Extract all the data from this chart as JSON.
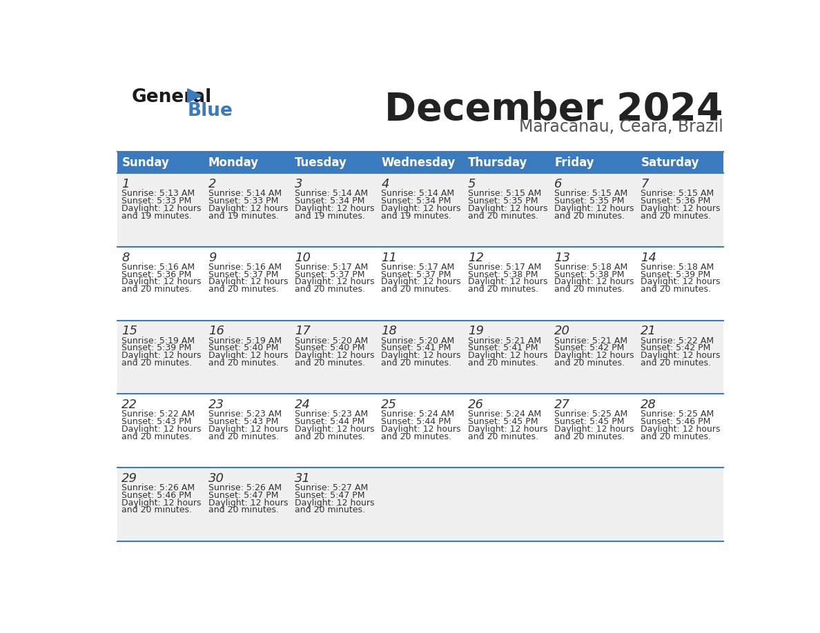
{
  "title": "December 2024",
  "subtitle": "Maracanau, Ceara, Brazil",
  "header_bg_color": "#3a7bbf",
  "header_text_color": "#ffffff",
  "row_bg_odd": "#f0f0f0",
  "row_bg_even": "#ffffff",
  "border_color": "#3a7bbf",
  "days_of_week": [
    "Sunday",
    "Monday",
    "Tuesday",
    "Wednesday",
    "Thursday",
    "Friday",
    "Saturday"
  ],
  "weeks": [
    [
      {
        "day": 1,
        "sunrise": "5:13 AM",
        "sunset": "5:33 PM",
        "dl1": "Daylight: 12 hours",
        "dl2": "and 19 minutes."
      },
      {
        "day": 2,
        "sunrise": "5:14 AM",
        "sunset": "5:33 PM",
        "dl1": "Daylight: 12 hours",
        "dl2": "and 19 minutes."
      },
      {
        "day": 3,
        "sunrise": "5:14 AM",
        "sunset": "5:34 PM",
        "dl1": "Daylight: 12 hours",
        "dl2": "and 19 minutes."
      },
      {
        "day": 4,
        "sunrise": "5:14 AM",
        "sunset": "5:34 PM",
        "dl1": "Daylight: 12 hours",
        "dl2": "and 19 minutes."
      },
      {
        "day": 5,
        "sunrise": "5:15 AM",
        "sunset": "5:35 PM",
        "dl1": "Daylight: 12 hours",
        "dl2": "and 20 minutes."
      },
      {
        "day": 6,
        "sunrise": "5:15 AM",
        "sunset": "5:35 PM",
        "dl1": "Daylight: 12 hours",
        "dl2": "and 20 minutes."
      },
      {
        "day": 7,
        "sunrise": "5:15 AM",
        "sunset": "5:36 PM",
        "dl1": "Daylight: 12 hours",
        "dl2": "and 20 minutes."
      }
    ],
    [
      {
        "day": 8,
        "sunrise": "5:16 AM",
        "sunset": "5:36 PM",
        "dl1": "Daylight: 12 hours",
        "dl2": "and 20 minutes."
      },
      {
        "day": 9,
        "sunrise": "5:16 AM",
        "sunset": "5:37 PM",
        "dl1": "Daylight: 12 hours",
        "dl2": "and 20 minutes."
      },
      {
        "day": 10,
        "sunrise": "5:17 AM",
        "sunset": "5:37 PM",
        "dl1": "Daylight: 12 hours",
        "dl2": "and 20 minutes."
      },
      {
        "day": 11,
        "sunrise": "5:17 AM",
        "sunset": "5:37 PM",
        "dl1": "Daylight: 12 hours",
        "dl2": "and 20 minutes."
      },
      {
        "day": 12,
        "sunrise": "5:17 AM",
        "sunset": "5:38 PM",
        "dl1": "Daylight: 12 hours",
        "dl2": "and 20 minutes."
      },
      {
        "day": 13,
        "sunrise": "5:18 AM",
        "sunset": "5:38 PM",
        "dl1": "Daylight: 12 hours",
        "dl2": "and 20 minutes."
      },
      {
        "day": 14,
        "sunrise": "5:18 AM",
        "sunset": "5:39 PM",
        "dl1": "Daylight: 12 hours",
        "dl2": "and 20 minutes."
      }
    ],
    [
      {
        "day": 15,
        "sunrise": "5:19 AM",
        "sunset": "5:39 PM",
        "dl1": "Daylight: 12 hours",
        "dl2": "and 20 minutes."
      },
      {
        "day": 16,
        "sunrise": "5:19 AM",
        "sunset": "5:40 PM",
        "dl1": "Daylight: 12 hours",
        "dl2": "and 20 minutes."
      },
      {
        "day": 17,
        "sunrise": "5:20 AM",
        "sunset": "5:40 PM",
        "dl1": "Daylight: 12 hours",
        "dl2": "and 20 minutes."
      },
      {
        "day": 18,
        "sunrise": "5:20 AM",
        "sunset": "5:41 PM",
        "dl1": "Daylight: 12 hours",
        "dl2": "and 20 minutes."
      },
      {
        "day": 19,
        "sunrise": "5:21 AM",
        "sunset": "5:41 PM",
        "dl1": "Daylight: 12 hours",
        "dl2": "and 20 minutes."
      },
      {
        "day": 20,
        "sunrise": "5:21 AM",
        "sunset": "5:42 PM",
        "dl1": "Daylight: 12 hours",
        "dl2": "and 20 minutes."
      },
      {
        "day": 21,
        "sunrise": "5:22 AM",
        "sunset": "5:42 PM",
        "dl1": "Daylight: 12 hours",
        "dl2": "and 20 minutes."
      }
    ],
    [
      {
        "day": 22,
        "sunrise": "5:22 AM",
        "sunset": "5:43 PM",
        "dl1": "Daylight: 12 hours",
        "dl2": "and 20 minutes."
      },
      {
        "day": 23,
        "sunrise": "5:23 AM",
        "sunset": "5:43 PM",
        "dl1": "Daylight: 12 hours",
        "dl2": "and 20 minutes."
      },
      {
        "day": 24,
        "sunrise": "5:23 AM",
        "sunset": "5:44 PM",
        "dl1": "Daylight: 12 hours",
        "dl2": "and 20 minutes."
      },
      {
        "day": 25,
        "sunrise": "5:24 AM",
        "sunset": "5:44 PM",
        "dl1": "Daylight: 12 hours",
        "dl2": "and 20 minutes."
      },
      {
        "day": 26,
        "sunrise": "5:24 AM",
        "sunset": "5:45 PM",
        "dl1": "Daylight: 12 hours",
        "dl2": "and 20 minutes."
      },
      {
        "day": 27,
        "sunrise": "5:25 AM",
        "sunset": "5:45 PM",
        "dl1": "Daylight: 12 hours",
        "dl2": "and 20 minutes."
      },
      {
        "day": 28,
        "sunrise": "5:25 AM",
        "sunset": "5:46 PM",
        "dl1": "Daylight: 12 hours",
        "dl2": "and 20 minutes."
      }
    ],
    [
      {
        "day": 29,
        "sunrise": "5:26 AM",
        "sunset": "5:46 PM",
        "dl1": "Daylight: 12 hours",
        "dl2": "and 20 minutes."
      },
      {
        "day": 30,
        "sunrise": "5:26 AM",
        "sunset": "5:47 PM",
        "dl1": "Daylight: 12 hours",
        "dl2": "and 20 minutes."
      },
      {
        "day": 31,
        "sunrise": "5:27 AM",
        "sunset": "5:47 PM",
        "dl1": "Daylight: 12 hours",
        "dl2": "and 20 minutes."
      },
      null,
      null,
      null,
      null
    ]
  ],
  "logo_triangle_color": "#3a7bbf",
  "logo_general_color": "#1a1a1a",
  "logo_blue_color": "#3a7bbf",
  "cell_text_color": "#333333",
  "title_color": "#222222",
  "subtitle_color": "#555555"
}
